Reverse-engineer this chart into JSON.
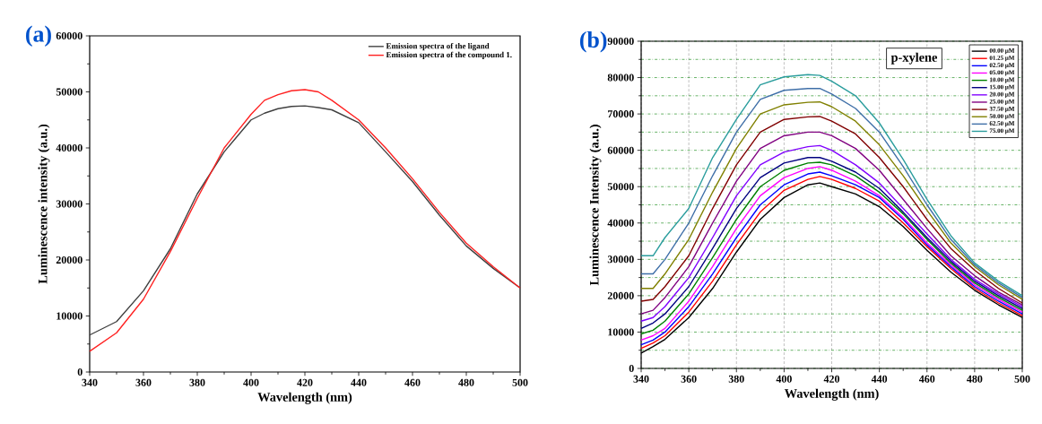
{
  "chart_data": [
    {
      "type": "line",
      "title": "(a)",
      "xlabel": "Wavelength (nm)",
      "ylabel": "Luminescence intensity (a.u.)",
      "xlim": [
        340,
        500
      ],
      "ylim": [
        0,
        60000
      ],
      "xticks": [
        340,
        360,
        380,
        400,
        420,
        440,
        460,
        480,
        500
      ],
      "yticks": [
        0,
        10000,
        20000,
        30000,
        40000,
        50000,
        60000
      ],
      "legend": "top right",
      "grid": false,
      "x": [
        340,
        350,
        360,
        370,
        380,
        390,
        400,
        405,
        410,
        415,
        420,
        425,
        430,
        440,
        450,
        460,
        470,
        480,
        490,
        500
      ],
      "series": [
        {
          "name": "Emission spectra of  the ligand",
          "color": "#404040",
          "values": [
            6600,
            9000,
            14500,
            22000,
            31800,
            39300,
            45000,
            46200,
            47000,
            47400,
            47500,
            47200,
            46800,
            44500,
            39300,
            34000,
            28000,
            22500,
            18500,
            15000
          ]
        },
        {
          "name": "Emission spectra of the compound 1.",
          "color": "#ff2020",
          "values": [
            3700,
            7000,
            13000,
            21500,
            31000,
            40000,
            46000,
            48500,
            49500,
            50200,
            50400,
            50000,
            48500,
            45000,
            40000,
            34500,
            28500,
            23000,
            18800,
            15000
          ]
        }
      ]
    },
    {
      "type": "line",
      "title": "(b)",
      "xlabel": "Wavelength (nm)",
      "ylabel": "Luminescence Intensity (a.u.)",
      "xlim": [
        340,
        500
      ],
      "ylim": [
        0,
        90000
      ],
      "xticks": [
        340,
        360,
        380,
        400,
        420,
        440,
        460,
        480,
        500
      ],
      "yticks": [
        0,
        10000,
        20000,
        30000,
        40000,
        50000,
        60000,
        70000,
        80000,
        90000
      ],
      "legend": "top right",
      "grid": true,
      "annotations": [
        "p-xylene"
      ],
      "x": [
        340,
        345,
        350,
        360,
        370,
        380,
        390,
        400,
        410,
        415,
        420,
        430,
        440,
        450,
        460,
        470,
        480,
        490,
        500
      ],
      "series": [
        {
          "name": "00.00 μM",
          "color": "#000000",
          "values": [
            4200,
            6000,
            8000,
            14000,
            22000,
            32000,
            41000,
            47000,
            50500,
            51000,
            50000,
            48000,
            44500,
            39000,
            32500,
            26500,
            21500,
            17500,
            14000
          ]
        },
        {
          "name": "01.25 μM",
          "color": "#ff0000",
          "values": [
            5500,
            7000,
            9000,
            15500,
            24000,
            34000,
            43000,
            49000,
            52000,
            52800,
            52000,
            49500,
            46000,
            40000,
            33500,
            27500,
            22000,
            18000,
            14500
          ]
        },
        {
          "name": "02.50 μM",
          "color": "#0000ff",
          "values": [
            6500,
            7800,
            10000,
            17000,
            26000,
            36000,
            45000,
            50500,
            53500,
            54000,
            53000,
            50500,
            47000,
            41000,
            34000,
            28000,
            22500,
            18500,
            15000
          ]
        },
        {
          "name": "05.00 μM",
          "color": "#ff00ff",
          "values": [
            7800,
            9000,
            11000,
            18500,
            28000,
            38500,
            47500,
            52500,
            55000,
            55500,
            54500,
            51500,
            47500,
            41500,
            34500,
            28500,
            23000,
            19000,
            15500
          ]
        },
        {
          "name": "10.00 μM",
          "color": "#008000",
          "values": [
            9500,
            10500,
            13000,
            20500,
            30500,
            41000,
            50000,
            54500,
            56500,
            56700,
            56000,
            53000,
            48500,
            42500,
            35500,
            29000,
            23500,
            19500,
            16000
          ]
        },
        {
          "name": "15.00 μM",
          "color": "#000080",
          "values": [
            11000,
            12500,
            15000,
            22500,
            33000,
            44000,
            52500,
            56500,
            58000,
            58000,
            57000,
            54000,
            49500,
            43000,
            36000,
            29500,
            24000,
            20000,
            16500
          ]
        },
        {
          "name": "20.00 μM",
          "color": "#8000ff",
          "values": [
            13000,
            14000,
            17000,
            25000,
            36000,
            47500,
            56000,
            59500,
            61000,
            61300,
            60000,
            56000,
            51000,
            44000,
            37000,
            30000,
            24500,
            20500,
            17000
          ]
        },
        {
          "name": "25.00 μM",
          "color": "#800080",
          "values": [
            15000,
            16000,
            19500,
            28000,
            40000,
            51500,
            60500,
            64000,
            65000,
            65000,
            64000,
            60500,
            54500,
            46500,
            38500,
            31000,
            25500,
            21000,
            17500
          ]
        },
        {
          "name": "37.50 μM",
          "color": "#800000",
          "values": [
            18500,
            19000,
            22500,
            31000,
            44000,
            56000,
            65000,
            68500,
            69200,
            69300,
            68000,
            64500,
            58000,
            50000,
            41000,
            33000,
            27000,
            22000,
            18000
          ]
        },
        {
          "name": "50.00 μM",
          "color": "#808000",
          "values": [
            22000,
            22000,
            26000,
            35500,
            48500,
            60500,
            70000,
            72500,
            73200,
            73300,
            72000,
            68000,
            61500,
            53000,
            43500,
            34500,
            28000,
            23000,
            19000
          ]
        },
        {
          "name": "62.50 μM",
          "color": "#3f6fa8",
          "values": [
            26000,
            26000,
            30000,
            40000,
            53000,
            65000,
            74000,
            76500,
            77000,
            77000,
            75500,
            71500,
            65000,
            55500,
            45000,
            35500,
            28500,
            23500,
            19500
          ]
        },
        {
          "name": "75.00 μM",
          "color": "#2a9d9d",
          "values": [
            31000,
            31000,
            36000,
            44000,
            58000,
            68500,
            78000,
            80200,
            80800,
            80600,
            79000,
            75000,
            67500,
            57500,
            46500,
            36500,
            29000,
            24000,
            20000
          ]
        }
      ]
    }
  ]
}
